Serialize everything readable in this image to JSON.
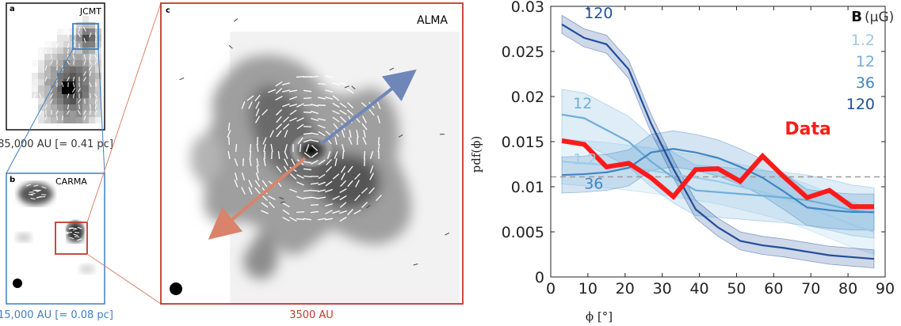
{
  "panels": {
    "a": {
      "letter": "a",
      "instrument": "JCMT",
      "scale_label": "85,000 AU [= 0.41 pc]"
    },
    "b": {
      "letter": "b",
      "instrument": "CARMA",
      "scale_label": "15,000 AU [= 0.08 pc]"
    },
    "c": {
      "letter": "c",
      "instrument": "ALMA",
      "scale_label": "3500 AU"
    }
  },
  "colors": {
    "panel_a_border": "#111111",
    "panel_b_border": "#3f7fc0",
    "panel_c_border": "#c0392b",
    "arrow_blue": "#6f86b8",
    "arrow_red": "#d9836b",
    "data_line": "#ff1a1a",
    "b12": "#9ccbe6",
    "b12b": "#6eaed9",
    "b36": "#3f86c4",
    "b120": "#1f4f9a"
  },
  "chart_data": {
    "type": "line",
    "xlabel": "ϕ [°]",
    "ylabel": "pdf(ϕ)",
    "xlim": [
      0,
      90
    ],
    "ylim": [
      0,
      0.03
    ],
    "xticks": [
      0,
      10,
      20,
      30,
      40,
      50,
      60,
      70,
      80,
      90
    ],
    "yticks": [
      0,
      0.005,
      0.01,
      0.015,
      0.02,
      0.025,
      0.03
    ],
    "xtick_labels": [
      "0",
      "10",
      "20",
      "30",
      "40",
      "50",
      "60",
      "70",
      "80",
      "90"
    ],
    "ytick_labels": [
      "0",
      "0.005",
      "0.01",
      "0.015",
      "0.02",
      "0.025",
      "0.03"
    ],
    "reference_line": 0.0111,
    "legend_title": "B",
    "legend_unit": "(μG)",
    "legend_entries": [
      "1.2",
      "12",
      "36",
      "120"
    ],
    "x": [
      3,
      9,
      15,
      21,
      27,
      33,
      39,
      45,
      51,
      57,
      63,
      69,
      75,
      81,
      87
    ],
    "series": [
      {
        "name": "1.2",
        "color_key": "b12",
        "values": [
          0.0128,
          0.0126,
          0.0124,
          0.0121,
          0.0118,
          0.0114,
          0.011,
          0.0106,
          0.01,
          0.0094,
          0.0087,
          0.0078,
          0.0068,
          0.0058,
          0.005
        ],
        "band": 0.0025
      },
      {
        "name": "12",
        "color_key": "b12b",
        "values": [
          0.018,
          0.0176,
          0.0163,
          0.015,
          0.0128,
          0.011,
          0.0096,
          0.0094,
          0.0092,
          0.009,
          0.0088,
          0.0085,
          0.008,
          0.0074,
          0.0071
        ],
        "band": 0.0028
      },
      {
        "name": "36",
        "color_key": "b36",
        "values": [
          0.0113,
          0.0114,
          0.0116,
          0.0121,
          0.0138,
          0.0142,
          0.0138,
          0.0132,
          0.0122,
          0.011,
          0.0094,
          0.0077,
          0.0074,
          0.0072,
          0.0072
        ],
        "band": 0.002
      },
      {
        "name": "120",
        "color_key": "b120",
        "values": [
          0.028,
          0.0265,
          0.0258,
          0.023,
          0.017,
          0.012,
          0.0075,
          0.0055,
          0.004,
          0.0035,
          0.0032,
          0.0028,
          0.0024,
          0.0022,
          0.002
        ],
        "band": 0.001
      },
      {
        "name": "Data",
        "color_key": "data_line",
        "values": [
          0.0151,
          0.0147,
          0.0122,
          0.0126,
          0.011,
          0.0089,
          0.0119,
          0.012,
          0.0106,
          0.0134,
          0.011,
          0.0088,
          0.0096,
          0.0078,
          0.0078
        ]
      }
    ],
    "curve_labels": [
      {
        "text": "120",
        "x": 9,
        "y": 0.0287,
        "color_key": "b120"
      },
      {
        "text": "12",
        "x": 6,
        "y": 0.0187,
        "color_key": "b12b"
      },
      {
        "text": "1.2",
        "x": 6,
        "y": 0.0125,
        "color_key": "b12"
      },
      {
        "text": "36",
        "x": 9,
        "y": 0.0098,
        "color_key": "b36"
      },
      {
        "text": "Data",
        "x": 63,
        "y": 0.0158,
        "color_key": "data_line"
      }
    ]
  }
}
